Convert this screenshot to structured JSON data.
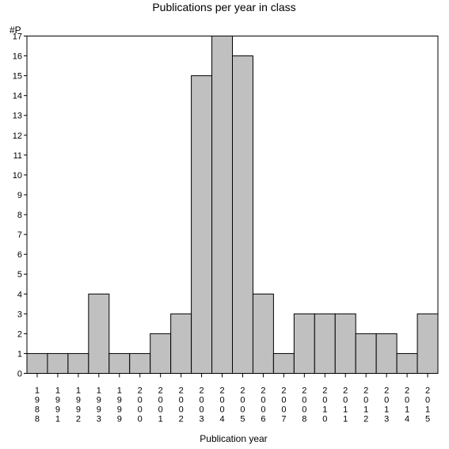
{
  "chart_data": {
    "type": "bar",
    "title": "Publications per year in class",
    "xlabel": "Publication year",
    "ylabel": "#P",
    "ylim": [
      0,
      17
    ],
    "yticks": [
      "0",
      "1",
      "2",
      "3",
      "4",
      "5",
      "6",
      "7",
      "8",
      "9",
      "10",
      "11",
      "12",
      "13",
      "14",
      "15",
      "16",
      "17"
    ],
    "categories": [
      "1988",
      "1991",
      "1992",
      "1993",
      "1999",
      "2000",
      "2001",
      "2002",
      "2003",
      "2004",
      "2005",
      "2006",
      "2007",
      "2008",
      "2010",
      "2011",
      "2012",
      "2013",
      "2014",
      "2015"
    ],
    "values": [
      1,
      1,
      1,
      4,
      1,
      1,
      2,
      3,
      15,
      17,
      16,
      4,
      1,
      3,
      3,
      3,
      2,
      2,
      1,
      3
    ],
    "bar_color": "#c0c0c0",
    "bar_stroke": "#000000",
    "grid": false,
    "legend": "none"
  }
}
